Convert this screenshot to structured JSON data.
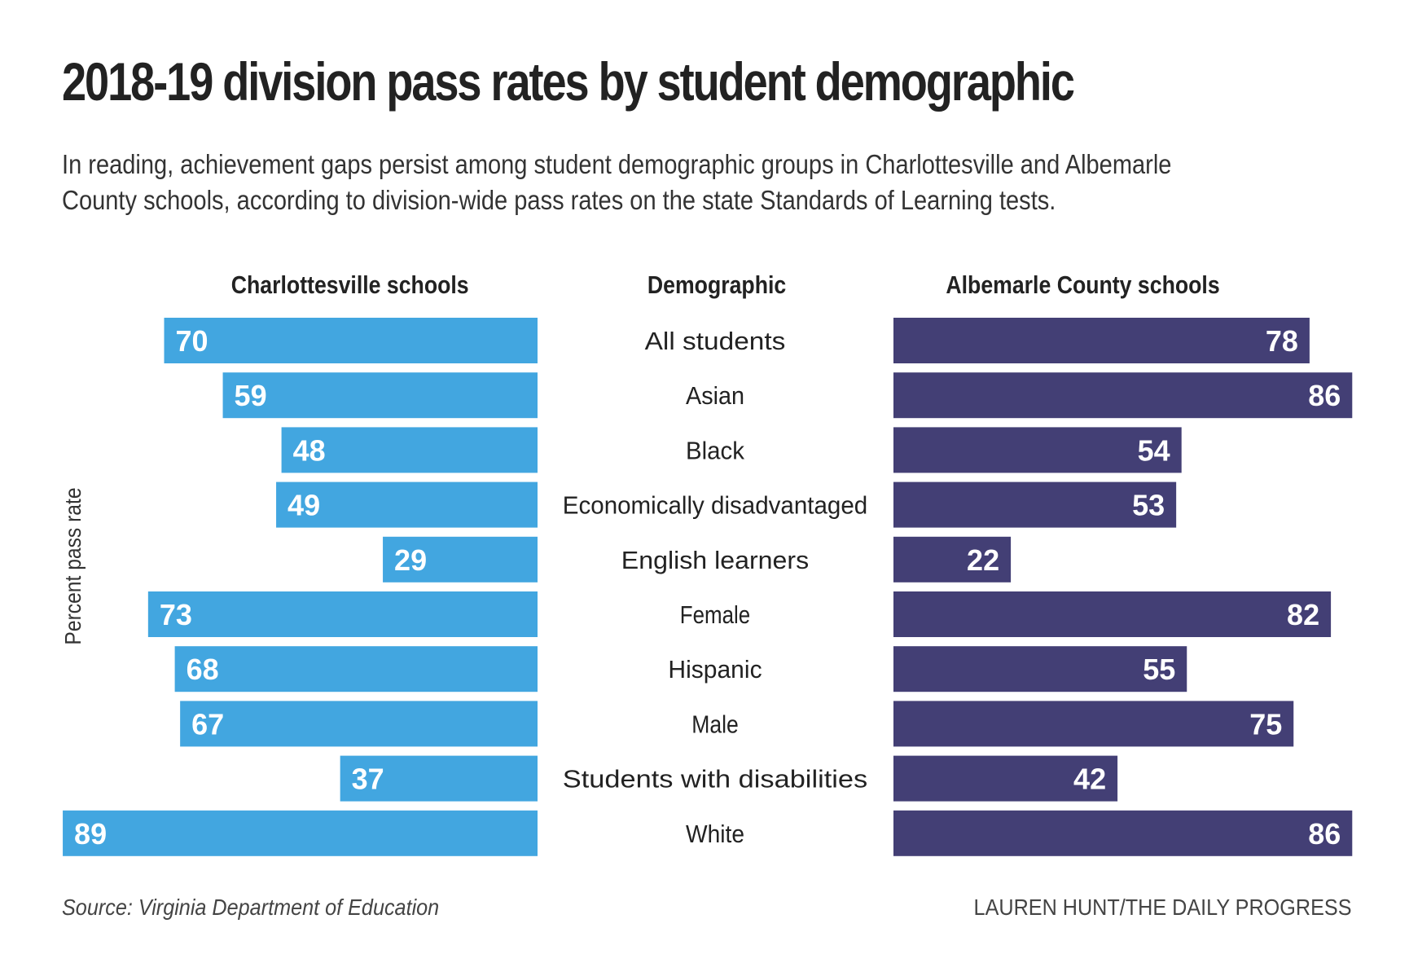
{
  "title": "2018-19 division pass rates by student demographic",
  "subtitle": "In reading, achievement gaps persist among student demographic groups in Charlottesville and Albemarle County schools, according to division-wide pass rates on the state Standards of Learning tests.",
  "y_axis_label": "Percent pass rate",
  "source": "Source: Virginia Department of Education",
  "credit": "LAUREN HUNT/THE DAILY PROGRESS",
  "colors": {
    "charlottesville": "#42a6e0",
    "albemarle": "#433f75",
    "bar_label": "#ffffff",
    "text": "#222222"
  },
  "chart_data": {
    "type": "bar",
    "orientation": "horizontal",
    "layout": "butterfly",
    "title": "2018-19 division pass rates by student demographic",
    "xlabel": "",
    "ylabel": "Percent pass rate",
    "xlim": [
      0,
      100
    ],
    "category_header": "Demographic",
    "categories": [
      "All students",
      "Asian",
      "Black",
      "Economically disadvantaged",
      "English learners",
      "Female",
      "Hispanic",
      "Male",
      "Students with disabilities",
      "White"
    ],
    "series": [
      {
        "name": "Charlottesville schools",
        "side": "left",
        "values": [
          70,
          59,
          48,
          49,
          29,
          73,
          68,
          67,
          37,
          89
        ]
      },
      {
        "name": "Albemarle County schools",
        "side": "right",
        "values": [
          78,
          86,
          54,
          53,
          22,
          82,
          55,
          75,
          42,
          86
        ]
      }
    ]
  }
}
